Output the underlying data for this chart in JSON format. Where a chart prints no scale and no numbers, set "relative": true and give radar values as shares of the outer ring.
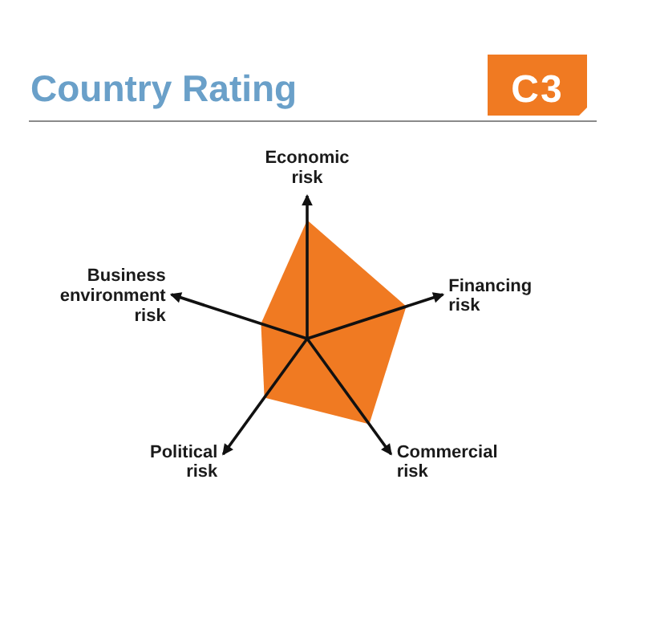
{
  "chart_data": {
    "type": "radar",
    "title": "Country Rating",
    "annotations": [
      "C3"
    ],
    "categories": [
      "Economic risk",
      "Financing risk",
      "Commercial risk",
      "Political risk",
      "Business environment risk"
    ],
    "relative": true,
    "series": [
      {
        "color": "#f07a22",
        "values": [
          0.83,
          0.73,
          0.74,
          0.51,
          0.34
        ]
      }
    ]
  }
}
